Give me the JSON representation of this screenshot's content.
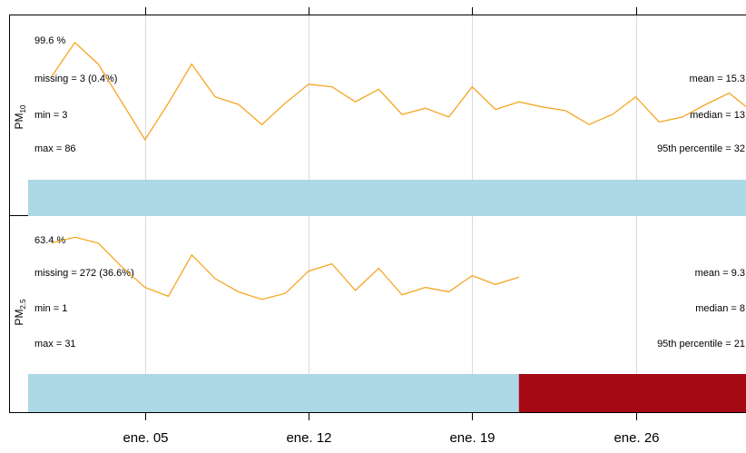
{
  "chart_data": {
    "type": "line",
    "x_ticks": [
      "ene. 05",
      "ene. 12",
      "ene. 19",
      "ene. 26"
    ],
    "colors": {
      "line": "#f5a623",
      "capture": "#add8e6",
      "missing": "#a50a14",
      "pct_text": "#1a7a1a",
      "grid": "#d9d9d9"
    },
    "panels": [
      {
        "label_main": "PM",
        "label_sub": "10",
        "percent": "99.6 %",
        "missing": "missing = 3 (0.4%)",
        "min": "min = 3",
        "max": "max = 86",
        "mean": "mean = 15.3",
        "median": "median = 13",
        "p95": "95th percentile = 32",
        "y_range": [
          0,
          90
        ],
        "series": [
          [
            "2023-01-01",
            58
          ],
          [
            "2023-01-02",
            85
          ],
          [
            "2023-01-03",
            68
          ],
          [
            "2023-01-05",
            8
          ],
          [
            "2023-01-06",
            37
          ],
          [
            "2023-01-07",
            68
          ],
          [
            "2023-01-08",
            42
          ],
          [
            "2023-01-09",
            36
          ],
          [
            "2023-01-10",
            20
          ],
          [
            "2023-01-11",
            37
          ],
          [
            "2023-01-12",
            52
          ],
          [
            "2023-01-13",
            50
          ],
          [
            "2023-01-14",
            38
          ],
          [
            "2023-01-15",
            48
          ],
          [
            "2023-01-16",
            28
          ],
          [
            "2023-01-17",
            33
          ],
          [
            "2023-01-18",
            26
          ],
          [
            "2023-01-19",
            50
          ],
          [
            "2023-01-20",
            32
          ],
          [
            "2023-01-21",
            38
          ],
          [
            "2023-01-22",
            34
          ],
          [
            "2023-01-23",
            31
          ],
          [
            "2023-01-24",
            20
          ],
          [
            "2023-01-25",
            28
          ],
          [
            "2023-01-26",
            42
          ],
          [
            "2023-01-27",
            22
          ],
          [
            "2023-01-28",
            26
          ],
          [
            "2023-01-29",
            36
          ],
          [
            "2023-01-30",
            45
          ],
          [
            "2023-01-31",
            30
          ]
        ],
        "capture_bar": [
          {
            "from": "2022-12-31",
            "to": "2023-01-31",
            "status": "captured"
          }
        ]
      },
      {
        "label_main": "PM",
        "label_sub": "2.5",
        "percent": "63.4 %",
        "missing": "missing = 272 (36.6%)",
        "min": "min = 1",
        "max": "max = 31",
        "mean": "mean = 9.3",
        "median": "median = 8",
        "p95": "95th percentile = 21",
        "y_range": [
          0,
          31
        ],
        "series": [
          [
            "2023-01-01",
            28
          ],
          [
            "2023-01-02",
            30
          ],
          [
            "2023-01-03",
            28
          ],
          [
            "2023-01-04",
            20
          ],
          [
            "2023-01-05",
            13
          ],
          [
            "2023-01-06",
            10
          ],
          [
            "2023-01-07",
            24
          ],
          [
            "2023-01-08",
            16
          ],
          [
            "2023-01-09",
            11.5
          ],
          [
            "2023-01-10",
            9
          ],
          [
            "2023-01-11",
            11
          ],
          [
            "2023-01-12",
            18.5
          ],
          [
            "2023-01-13",
            21
          ],
          [
            "2023-01-14",
            12
          ],
          [
            "2023-01-15",
            19.5
          ],
          [
            "2023-01-16",
            10.5
          ],
          [
            "2023-01-17",
            13
          ],
          [
            "2023-01-18",
            11.5
          ],
          [
            "2023-01-19",
            17
          ],
          [
            "2023-01-20",
            14
          ],
          [
            "2023-01-21",
            16.5
          ]
        ],
        "capture_bar": [
          {
            "from": "2022-12-31",
            "to": "2023-01-21",
            "status": "captured"
          },
          {
            "from": "2023-01-21",
            "to": "2023-01-31",
            "status": "missing"
          }
        ]
      }
    ]
  }
}
